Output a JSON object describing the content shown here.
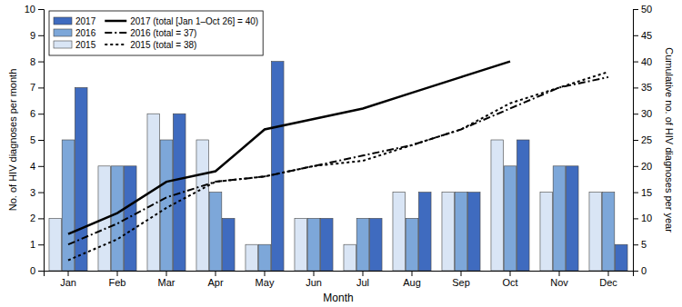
{
  "chart_data": {
    "type": "bar",
    "xlabel": "Month",
    "ylabel": "No. of HIV diagnoses per month",
    "y2label": "Cumulative no. of HIV diagnoses per year",
    "categories": [
      "Jan",
      "Feb",
      "Mar",
      "Apr",
      "May",
      "Jun",
      "Jul",
      "Aug",
      "Sep",
      "Oct",
      "Nov",
      "Dec"
    ],
    "series": [
      {
        "name": "2015",
        "type": "bar",
        "color": "#d9e5f5",
        "values": [
          2,
          4,
          6,
          5,
          1,
          2,
          1,
          3,
          3,
          5,
          3,
          3
        ]
      },
      {
        "name": "2016",
        "type": "bar",
        "color": "#7da7d9",
        "values": [
          5,
          4,
          5,
          3,
          1,
          2,
          2,
          2,
          3,
          4,
          4,
          3
        ]
      },
      {
        "name": "2017",
        "type": "bar",
        "color": "#3f6bbf",
        "values": [
          7,
          4,
          6,
          2,
          8,
          2,
          2,
          3,
          3,
          5,
          4,
          1
        ]
      },
      {
        "name": "2017 (total [Jan 1–Oct 26] = 40)",
        "type": "line",
        "axis": "y2",
        "color": "black",
        "line_style": "solid",
        "values": [
          7,
          11,
          17,
          19,
          27,
          29,
          31,
          34,
          37,
          40,
          null,
          null
        ]
      },
      {
        "name": "2016 (total = 37)",
        "type": "line",
        "axis": "y2",
        "color": "black",
        "line_style": "dashdot",
        "values": [
          5,
          9,
          14,
          17,
          18,
          20,
          22,
          24,
          27,
          31,
          35,
          37
        ]
      },
      {
        "name": "2015 (total = 38)",
        "type": "line",
        "axis": "y2",
        "color": "black",
        "line_style": "dotted",
        "values": [
          2,
          6,
          12,
          17,
          18,
          20,
          21,
          24,
          27,
          32,
          35,
          38
        ]
      }
    ],
    "ylim": [
      0,
      10
    ],
    "yticks": [
      0,
      1,
      2,
      3,
      4,
      5,
      6,
      7,
      8,
      9,
      10
    ],
    "y2lim": [
      0,
      50
    ],
    "y2ticks": [
      0,
      5,
      10,
      15,
      20,
      25,
      30,
      35,
      40,
      45,
      50
    ],
    "grid": false,
    "legend": "upper left"
  }
}
